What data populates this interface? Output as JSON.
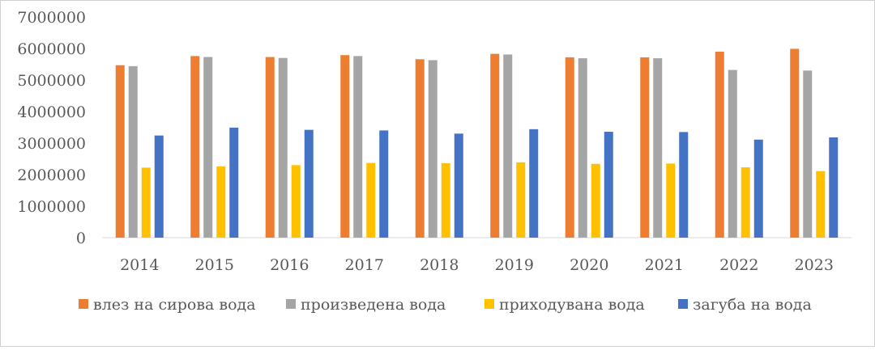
{
  "chart_data": {
    "type": "bar",
    "title": "",
    "xlabel": "",
    "ylabel": "",
    "ylim": [
      0,
      7000000
    ],
    "yticks": [
      "0",
      "1000000",
      "2000000",
      "3000000",
      "4000000",
      "5000000",
      "6000000",
      "7000000"
    ],
    "grid": false,
    "legend_position": "bottom",
    "categories": [
      "2014",
      "2015",
      "2016",
      "2017",
      "2018",
      "2019",
      "2020",
      "2021",
      "2022",
      "2023"
    ],
    "series": [
      {
        "name": "влез на сирова вода",
        "color": "#ED7D31",
        "values": [
          5470000,
          5760000,
          5730000,
          5790000,
          5660000,
          5830000,
          5720000,
          5720000,
          5900000,
          5990000
        ]
      },
      {
        "name": "произведена  вода",
        "color": "#A5A5A5",
        "values": [
          5440000,
          5730000,
          5700000,
          5760000,
          5630000,
          5810000,
          5690000,
          5690000,
          5320000,
          5300000
        ]
      },
      {
        "name": "приходувана вода",
        "color": "#FFC000",
        "values": [
          2220000,
          2260000,
          2300000,
          2370000,
          2360000,
          2390000,
          2340000,
          2350000,
          2230000,
          2110000
        ]
      },
      {
        "name": "загуба на вода",
        "color": "#4472C4",
        "values": [
          3240000,
          3490000,
          3420000,
          3400000,
          3300000,
          3440000,
          3360000,
          3350000,
          3110000,
          3180000
        ]
      }
    ]
  }
}
